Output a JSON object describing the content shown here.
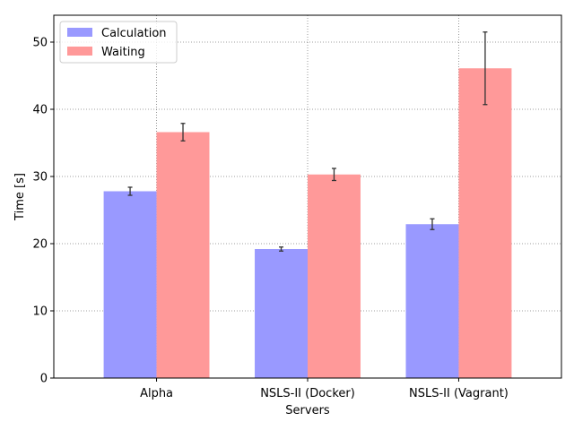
{
  "chart_data": {
    "type": "bar",
    "title": "",
    "xlabel": "Servers",
    "ylabel": "Time [s]",
    "categories": [
      "Alpha",
      "NSLS-II (Docker)",
      "NSLS-II (Vagrant)"
    ],
    "series": [
      {
        "name": "Calculation",
        "color": "#9999ff",
        "values": [
          27.8,
          19.2,
          22.9
        ],
        "errors": [
          0.6,
          0.3,
          0.8
        ]
      },
      {
        "name": "Waiting",
        "color": "#ff9999",
        "values": [
          36.6,
          30.3,
          46.1
        ],
        "errors": [
          1.3,
          0.9,
          5.4
        ]
      }
    ],
    "ylim": [
      0,
      54
    ],
    "yticks": [
      0,
      10,
      20,
      30,
      40,
      50
    ],
    "grid": true,
    "legend_position": "top-left"
  }
}
